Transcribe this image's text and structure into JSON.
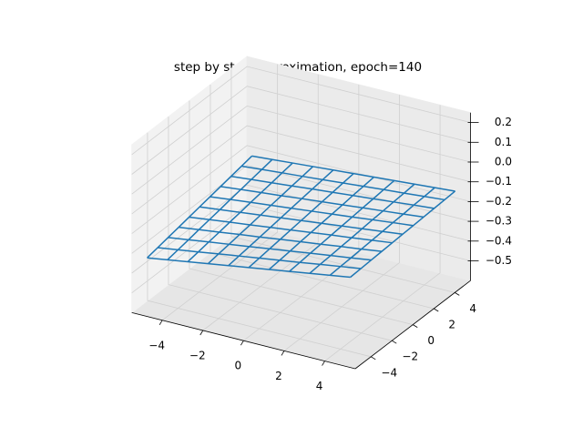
{
  "chart_data": {
    "type": "wireframe",
    "title": "step by step approximation, epoch=140",
    "color": "#1f77b4",
    "grid": true,
    "x": [
      -5,
      -4,
      -3,
      -2,
      -1,
      0,
      1,
      2,
      3,
      4,
      5
    ],
    "y": [
      -5,
      -4,
      -3,
      -2,
      -1,
      0,
      1,
      2,
      3,
      4,
      5
    ],
    "z": [
      [
        -0.33,
        -0.314,
        -0.298,
        -0.282,
        -0.266,
        -0.25,
        -0.234,
        -0.218,
        -0.202,
        -0.186,
        -0.17
      ],
      [
        -0.319,
        -0.304,
        -0.289,
        -0.273,
        -0.258,
        -0.243,
        -0.228,
        -0.213,
        -0.197,
        -0.182,
        -0.167
      ],
      [
        -0.308,
        -0.294,
        -0.279,
        -0.265,
        -0.251,
        -0.236,
        -0.222,
        -0.207,
        -0.193,
        -0.179,
        -0.164
      ],
      [
        -0.297,
        -0.283,
        -0.27,
        -0.256,
        -0.243,
        -0.229,
        -0.215,
        -0.202,
        -0.188,
        -0.175,
        -0.161
      ],
      [
        -0.286,
        -0.273,
        -0.26,
        -0.248,
        -0.235,
        -0.222,
        -0.209,
        -0.196,
        -0.184,
        -0.171,
        -0.158
      ],
      [
        -0.275,
        -0.263,
        -0.251,
        -0.239,
        -0.227,
        -0.215,
        -0.203,
        -0.191,
        -0.179,
        -0.167,
        -0.155
      ],
      [
        -0.264,
        -0.252,
        -0.241,
        -0.23,
        -0.219,
        -0.208,
        -0.197,
        -0.186,
        -0.174,
        -0.163,
        -0.152
      ],
      [
        -0.253,
        -0.242,
        -0.232,
        -0.222,
        -0.211,
        -0.201,
        -0.191,
        -0.18,
        -0.17,
        -0.16,
        -0.149
      ],
      [
        -0.242,
        -0.232,
        -0.223,
        -0.213,
        -0.203,
        -0.194,
        -0.184,
        -0.175,
        -0.165,
        -0.155,
        -0.146
      ],
      [
        -0.231,
        -0.222,
        -0.213,
        -0.205,
        -0.196,
        -0.187,
        -0.178,
        -0.169,
        -0.161,
        -0.152,
        -0.143
      ],
      [
        -0.22,
        -0.212,
        -0.204,
        -0.196,
        -0.188,
        -0.18,
        -0.172,
        -0.164,
        -0.156,
        -0.148,
        -0.14
      ]
    ],
    "xlim": [
      -5.5,
      5.5
    ],
    "ylim": [
      -5.5,
      5.5
    ],
    "zlim": [
      -0.6,
      0.25
    ],
    "xticks": [
      {
        "value": -4,
        "label": "−4"
      },
      {
        "value": -2,
        "label": "−2"
      },
      0,
      2,
      4
    ],
    "yticks": [
      {
        "value": -4,
        "label": "−4"
      },
      {
        "value": -2,
        "label": "−2"
      },
      0,
      2,
      4
    ],
    "zticks": [
      {
        "value": -0.5,
        "label": "−0.5"
      },
      {
        "value": -0.4,
        "label": "−0.4"
      },
      {
        "value": -0.3,
        "label": "−0.3"
      },
      {
        "value": -0.2,
        "label": "−0.2"
      },
      {
        "value": -0.1,
        "label": "−0.1"
      },
      {
        "value": 0,
        "label": "0.0"
      },
      0.1,
      0.2
    ]
  }
}
